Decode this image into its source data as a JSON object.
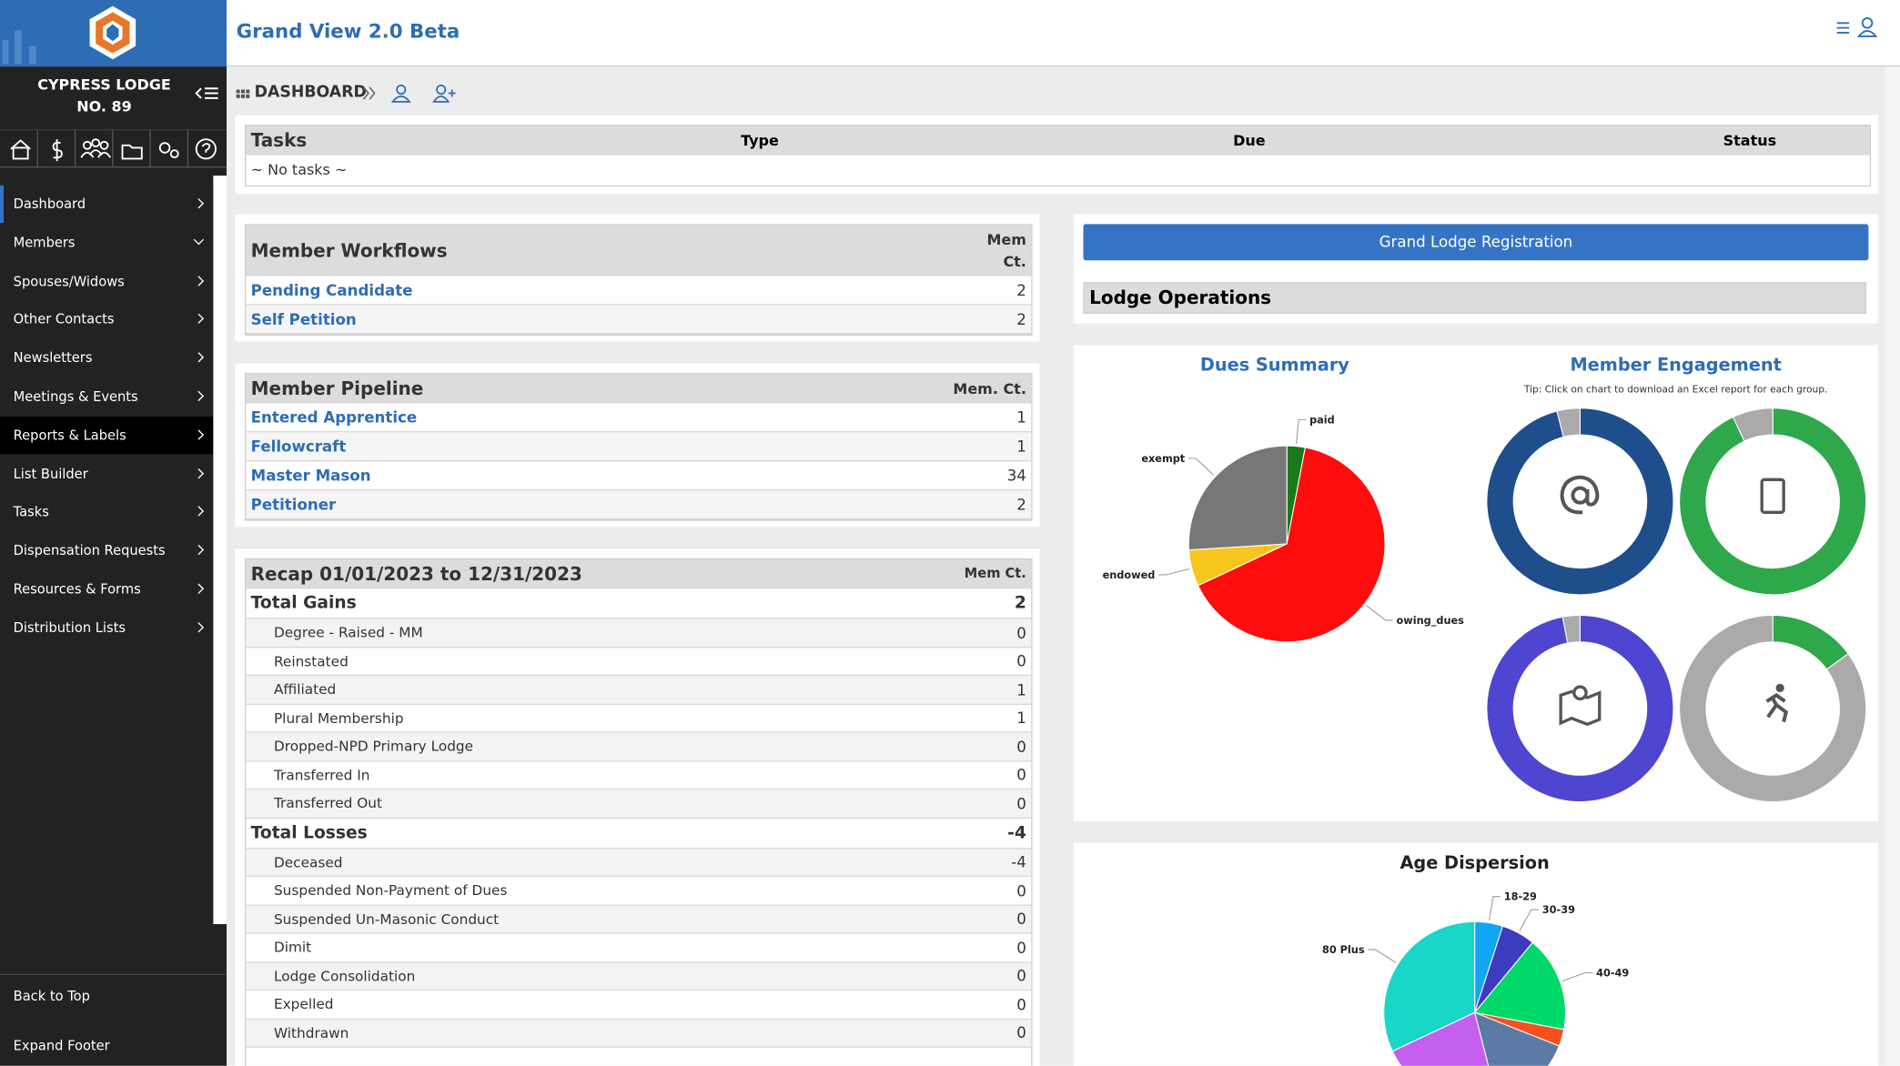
{
  "header": {
    "lodge": "CYPRESS LODGE NO. 89",
    "app_title": "Grand View 2.0 Beta"
  },
  "sidebar": {
    "menu": [
      "Dashboard",
      "Members",
      "Spouses/Widows",
      "Other Contacts",
      "Newsletters",
      "Meetings & Events",
      "Reports & Labels",
      "List Builder",
      "Tasks",
      "Dispensation Requests",
      "Resources & Forms",
      "Distribution Lists"
    ],
    "back_to_top": "Back to Top",
    "expand_footer": "Expand Footer"
  },
  "breadcrumb": "DASHBOARD",
  "tasks": {
    "title": "Tasks",
    "columns": [
      "Type",
      "Due",
      "Status"
    ],
    "empty": "~ No tasks ~"
  },
  "workflows": {
    "title": "Member Workflows",
    "count_header": "Mem Ct.",
    "rows": [
      {
        "label": "Pending Candidate",
        "count": 2
      },
      {
        "label": "Self Petition",
        "count": 2
      }
    ]
  },
  "pipeline": {
    "title": "Member Pipeline",
    "count_header": "Mem. Ct.",
    "rows": [
      {
        "label": "Entered Apprentice",
        "count": 1
      },
      {
        "label": "Fellowcraft",
        "count": 1
      },
      {
        "label": "Master Mason",
        "count": 34
      },
      {
        "label": "Petitioner",
        "count": 2
      }
    ]
  },
  "recap": {
    "title": "Recap 01/01/2023 to 12/31/2023",
    "count_header": "Mem Ct.",
    "groups": [
      {
        "label": "Total Gains",
        "total": 2,
        "rows": [
          {
            "label": "Degree - Raised - MM",
            "count": 0
          },
          {
            "label": "Reinstated",
            "count": 0
          },
          {
            "label": "Affiliated",
            "count": 1
          },
          {
            "label": "Plural Membership",
            "count": 1
          },
          {
            "label": "Dropped-NPD Primary Lodge",
            "count": 0
          },
          {
            "label": "Transferred In",
            "count": 0
          },
          {
            "label": "Transferred Out",
            "count": 0
          }
        ]
      },
      {
        "label": "Total Losses",
        "total": -4,
        "rows": [
          {
            "label": "Deceased",
            "count": -4
          },
          {
            "label": "Suspended Non-Payment of Dues",
            "count": 0
          },
          {
            "label": "Suspended Un-Masonic Conduct",
            "count": 0
          },
          {
            "label": "Dimit",
            "count": 0
          },
          {
            "label": "Lodge Consolidation",
            "count": 0
          },
          {
            "label": "Expelled",
            "count": 0
          },
          {
            "label": "Withdrawn",
            "count": 0
          }
        ]
      }
    ]
  },
  "registration_button": "Grand Lodge Registration",
  "lodge_operations": "Lodge Operations",
  "chart_data": [
    {
      "type": "pie",
      "title": "Dues Summary",
      "categories": [
        "paid",
        "owing_dues",
        "endowed",
        "exempt"
      ],
      "values": [
        3,
        65,
        6,
        26
      ],
      "colors": [
        "#1a7a1a",
        "#ff0d0d",
        "#f8c51c",
        "#777777"
      ]
    },
    {
      "type": "donut",
      "title": "Member Engagement",
      "subtitle": "Tip: Click on chart to download an Excel report for each group.",
      "charts": [
        {
          "values": [
            96,
            4
          ],
          "colors": [
            "#1f4e8c",
            "#aaaaaa"
          ]
        },
        {
          "values": [
            93,
            7
          ],
          "colors": [
            "#2ea84a",
            "#aaaaaa"
          ]
        },
        {
          "values": [
            97,
            3
          ],
          "colors": [
            "#4e45d0",
            "#aaaaaa"
          ]
        },
        {
          "values": [
            15,
            85
          ],
          "colors": [
            "#2ea84a",
            "#aaaaaa"
          ]
        }
      ]
    },
    {
      "type": "pie",
      "title": "Age Dispersion",
      "categories": [
        "18-29",
        "30-39",
        "40-49",
        null,
        null,
        null,
        "80 Plus"
      ],
      "values": [
        5,
        6,
        17,
        3,
        15,
        22,
        32
      ],
      "colors": [
        "#12a5f4",
        "#3c3cc0",
        "#00d96a",
        "#f4511e",
        "#5b7aa6",
        "#c55ff0",
        "#18d6c8"
      ]
    }
  ]
}
